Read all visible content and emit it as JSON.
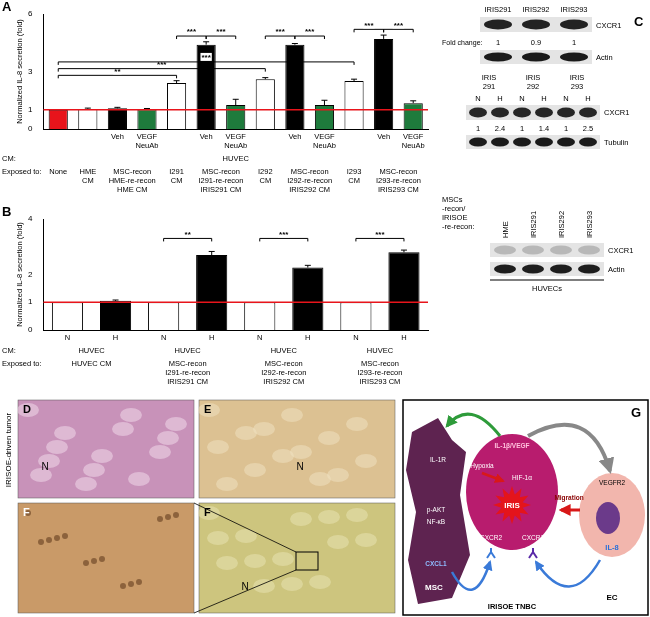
{
  "chart_data": [
    {
      "panel": "A",
      "type": "bar",
      "y_label": "Normalized IL-8 secretion (fold)",
      "categories": [
        null,
        null,
        "Veh",
        "VEGF NeuAb",
        null,
        "Veh",
        "VEGF NeuAb",
        null,
        "Veh",
        "VEGF NeuAb",
        null,
        "Veh",
        "VEGF NeuAb"
      ],
      "values": [
        1.0,
        1.05,
        1.08,
        1.03,
        2.4,
        4.4,
        1.25,
        2.6,
        4.4,
        1.25,
        2.5,
        4.7,
        1.35
      ],
      "errors": [
        0,
        0.04,
        0.05,
        0.04,
        0.12,
        0.15,
        0.3,
        0.08,
        0.06,
        0.25,
        0.1,
        0.2,
        0.12
      ],
      "colors": [
        "#e8141b",
        "#ffffff",
        "#000000",
        "#1e7b3c",
        "#ffffff",
        "#000000",
        "#1e7b3c",
        "#ffffff",
        "#000000",
        "#1e7b3c",
        "#ffffff",
        "#000000",
        "#1e7b3c"
      ],
      "ylim": [
        0,
        6
      ],
      "yticks": [
        0,
        1,
        3,
        6
      ],
      "grid": false,
      "reference_line": {
        "value": 1,
        "color": "#e8141b"
      },
      "row_labels": {
        "cm": "CM:",
        "exposed": "Exposed to:"
      },
      "cm_groups": [
        {
          "label": "HUVEC",
          "bars": [
            0,
            1,
            2,
            3,
            4,
            5,
            6,
            7,
            8,
            9,
            10,
            11,
            12
          ]
        }
      ],
      "exposed_groups": [
        {
          "label": [
            "None"
          ],
          "bars": [
            0
          ]
        },
        {
          "label": [
            "HME",
            "CM"
          ],
          "bars": [
            1
          ]
        },
        {
          "label": [
            "MSC-recon",
            "HME-re-recon",
            "HME CM"
          ],
          "bars": [
            2,
            3
          ]
        },
        {
          "label": [
            "I291",
            "CM"
          ],
          "bars": [
            4
          ]
        },
        {
          "label": [
            "MSC-recon",
            "I291-re-recon",
            "IRIS291 CM"
          ],
          "bars": [
            5,
            6
          ]
        },
        {
          "label": [
            "I292",
            "CM"
          ],
          "bars": [
            7
          ]
        },
        {
          "label": [
            "MSC-recon",
            "I292-re-recon",
            "IRIS292 CM"
          ],
          "bars": [
            8,
            9
          ]
        },
        {
          "label": [
            "I293",
            "CM"
          ],
          "bars": [
            10
          ]
        },
        {
          "label": [
            "MSC-recon",
            "I293-re-recon",
            "IRIS293 CM"
          ],
          "bars": [
            11,
            12
          ]
        }
      ],
      "significance": [
        {
          "bars": [
            0,
            4
          ],
          "y": 2.8,
          "label": "**"
        },
        {
          "bars": [
            0,
            7
          ],
          "y": 3.15,
          "label": "***"
        },
        {
          "bars": [
            0,
            10
          ],
          "y": 3.5,
          "label": "***"
        },
        {
          "bars": [
            4,
            5
          ],
          "y": 4.85,
          "label": "***"
        },
        {
          "bars": [
            5,
            6
          ],
          "y": 4.85,
          "label": "***"
        },
        {
          "bars": [
            7,
            8
          ],
          "y": 4.85,
          "label": "***"
        },
        {
          "bars": [
            8,
            9
          ],
          "y": 4.85,
          "label": "***"
        },
        {
          "bars": [
            10,
            11
          ],
          "y": 5.2,
          "label": "***"
        },
        {
          "bars": [
            11,
            12
          ],
          "y": 5.2,
          "label": "***"
        }
      ]
    },
    {
      "panel": "B",
      "type": "bar",
      "y_label": "Normalized IL-8 secretion (fold)",
      "categories": [
        "N",
        "H",
        "N",
        "H",
        "N",
        "H",
        "N",
        "H"
      ],
      "values": [
        1.0,
        1.05,
        1.0,
        2.7,
        1.0,
        2.25,
        1.0,
        2.8
      ],
      "errors": [
        0,
        0.03,
        0,
        0.13,
        0,
        0.08,
        0,
        0.08
      ],
      "colors": [
        "#ffffff",
        "#000000",
        "#ffffff",
        "#000000",
        "#ffffff",
        "#000000",
        "#ffffff",
        "#000000"
      ],
      "ylim": [
        0,
        4
      ],
      "yticks": [
        0,
        1,
        2,
        4
      ],
      "grid": false,
      "reference_line": {
        "value": 1,
        "color": "#e8141b"
      },
      "row_labels": {
        "cm": "CM:",
        "exposed": "Exposed to:"
      },
      "cm_groups": [
        {
          "label": "HUVEC",
          "bars": [
            0,
            1
          ]
        },
        {
          "label": "HUVEC",
          "bars": [
            2,
            3
          ]
        },
        {
          "label": "HUVEC",
          "bars": [
            4,
            5
          ]
        },
        {
          "label": "HUVEC",
          "bars": [
            6,
            7
          ]
        }
      ],
      "exposed_groups": [
        {
          "label": [
            "HUVEC CM"
          ],
          "bars": [
            0,
            1
          ]
        },
        {
          "label": [
            "MSC-recon",
            "I291-re-recon",
            "IRIS291 CM"
          ],
          "bars": [
            2,
            3
          ]
        },
        {
          "label": [
            "MSC-recon",
            "I292-re-recon",
            "IRIS292 CM"
          ],
          "bars": [
            4,
            5
          ]
        },
        {
          "label": [
            "MSC-recon",
            "I293-re-recon",
            "IRIS293 CM"
          ],
          "bars": [
            6,
            7
          ]
        }
      ],
      "significance": [
        {
          "bars": [
            2,
            3
          ],
          "y": 3.3,
          "label": "**"
        },
        {
          "bars": [
            4,
            5
          ],
          "y": 3.3,
          "label": "***"
        },
        {
          "bars": [
            6,
            7
          ],
          "y": 3.3,
          "label": "***"
        }
      ]
    }
  ],
  "panel_c": {
    "label": "C",
    "blot1": {
      "lanes": [
        "IRIS291",
        "IRIS292",
        "IRIS293"
      ],
      "band": "CXCR1",
      "fold_label": "Fold change:",
      "fold_change": [
        1,
        0.9,
        1
      ],
      "control": "Actin"
    },
    "blot2": {
      "groups": [
        "IRIS 291",
        "IRIS 292",
        "IRIS 293"
      ],
      "lanes": [
        "N",
        "H",
        "N",
        "H",
        "N",
        "H"
      ],
      "band": "CXCR1",
      "fold_change": [
        1,
        2.4,
        1,
        1.4,
        1,
        2.5
      ],
      "control": "Tubulin"
    },
    "blot3": {
      "header": [
        "MSCs",
        "-recon/",
        "IRISOE",
        "-re-recon:"
      ],
      "lanes": [
        "HME",
        "IRIS291",
        "IRIS292",
        "IRIS293"
      ],
      "band": "CXCR1",
      "control": "Actin",
      "cells": "HUVECs"
    }
  },
  "panels_d_f": {
    "side_label": "IRISOE-driven tumor",
    "images": [
      {
        "label": "D",
        "marks": [
          "N"
        ]
      },
      {
        "label": "E",
        "marks": [
          "N"
        ]
      },
      {
        "label": "F",
        "marks": []
      },
      {
        "label": "F",
        "marks": [
          "N"
        ]
      }
    ]
  },
  "panel_g": {
    "label": "G",
    "cells": [
      {
        "label": "MSC",
        "items": [
          "IL-1R",
          "p-AKT",
          "NF-κB",
          "CXCL1"
        ]
      },
      {
        "label": "IRISOE TNBC",
        "items": [
          "IL-1β/VEGF",
          "Hypoxia",
          "HIF-1α",
          "IRIS",
          "CXCR2",
          "CXCR1"
        ]
      },
      {
        "label": "EC",
        "items": [
          "VEGFR2",
          "IL-8"
        ]
      }
    ],
    "arrows": [
      "Migration"
    ]
  }
}
